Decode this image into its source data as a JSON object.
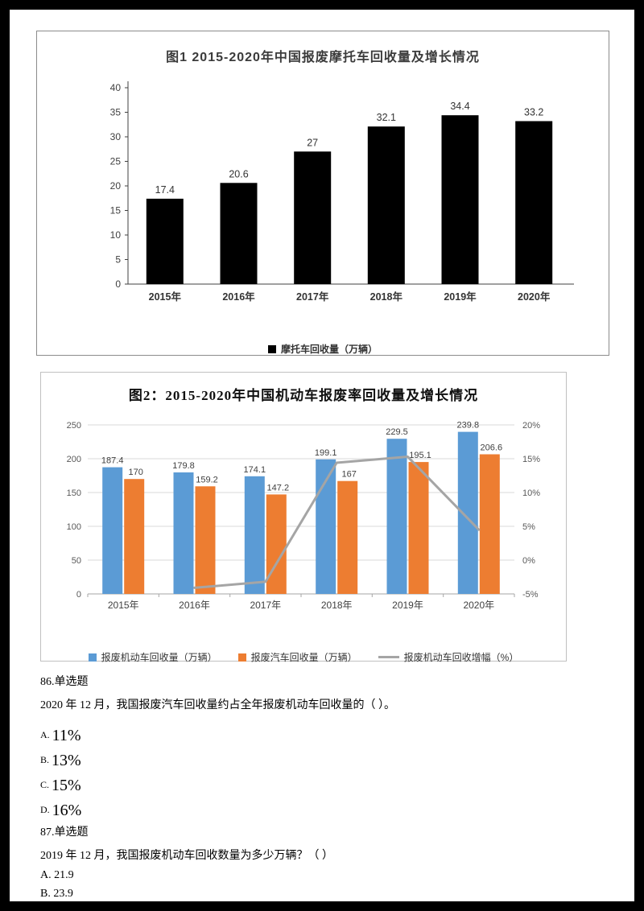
{
  "chart_data": [
    {
      "type": "bar",
      "title": "图1  2015-2020年中国报废摩托车回收量及增长情况",
      "categories": [
        "2015年",
        "2016年",
        "2017年",
        "2018年",
        "2019年",
        "2020年"
      ],
      "values": [
        17.4,
        20.6,
        27,
        32.1,
        34.4,
        33.2
      ],
      "ylim": [
        0,
        40
      ],
      "yticks": [
        0,
        5,
        10,
        15,
        20,
        25,
        30,
        35,
        40
      ],
      "bar_color": "#000000",
      "legend": [
        "摩托车回收量（万辆）"
      ],
      "grid": false,
      "legend_position": "bottom"
    },
    {
      "type": "bar+line",
      "title": "图2：2015-2020年中国机动车报废率回收量及增长情况",
      "categories": [
        "2015年",
        "2016年",
        "2017年",
        "2018年",
        "2019年",
        "2020年"
      ],
      "series": [
        {
          "name": "报废机动车回收量（万辆）",
          "type": "bar",
          "axis": "left",
          "color": "#5B9BD5",
          "values": [
            187.4,
            179.8,
            174.1,
            199.1,
            229.5,
            239.8
          ]
        },
        {
          "name": "报废汽车回收量（万辆）",
          "type": "bar",
          "axis": "left",
          "color": "#ED7D31",
          "values": [
            170,
            159.2,
            147.2,
            167,
            195.1,
            206.6
          ]
        },
        {
          "name": "报废机动车回收增幅（%）",
          "type": "line",
          "axis": "right",
          "color": "#A5A5A5",
          "values": [
            null,
            -4.1,
            -3.2,
            14.4,
            15.3,
            4.5
          ]
        }
      ],
      "ylim_left": [
        0,
        250
      ],
      "yticks_left": [
        0,
        50,
        100,
        150,
        200,
        250
      ],
      "ylim_right": [
        -5,
        20
      ],
      "yticks_right": [
        "-5%",
        "0%",
        "5%",
        "10%",
        "15%",
        "20%"
      ],
      "grid": true,
      "legend_position": "bottom"
    }
  ],
  "questions": [
    {
      "number": "86.单选题",
      "text": "2020 年 12 月，我国报废汽车回收量约占全年报废机动车回收量的（          ）。",
      "options": [
        {
          "label": "A.",
          "value": "11%"
        },
        {
          "label": "B.",
          "value": "13%"
        },
        {
          "label": "C.",
          "value": "15%"
        },
        {
          "label": "D.",
          "value": "16%"
        }
      ]
    },
    {
      "number": "87.单选题",
      "text": "2019 年 12 月，我国报废机动车回收数量为多少万辆？（          ）",
      "options": [
        {
          "label": "A.",
          "value": "21.9"
        },
        {
          "label": "B.",
          "value": "23.9"
        }
      ]
    }
  ]
}
